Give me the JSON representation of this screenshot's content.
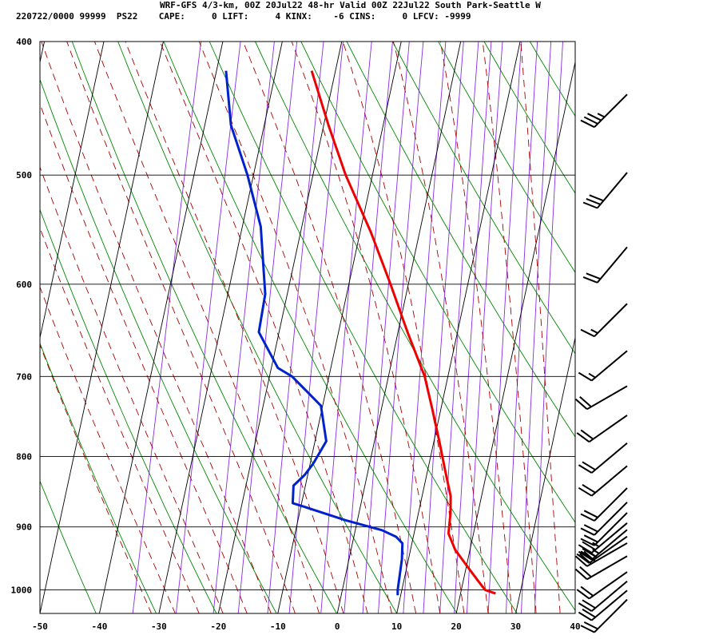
{
  "header": {
    "title": "WRF-GFS 4/3-km, 00Z 20Jul22 48-hr Valid 00Z 22Jul22 South Park-Seattle W",
    "info": "220722/0000 99999  PS22    CAPE:     0 LIFT:     4 KINX:    -6 CINS:     0 LFCV: -9999"
  },
  "chart_data": {
    "type": "line",
    "title": "WRF-GFS 4/3-km, 00Z 20Jul22 48-hr Valid 00Z 22Jul22 South Park-Seattle W",
    "xlabel": "",
    "ylabel": "",
    "x_ticks": [
      "-50",
      "-40",
      "-30",
      "-20",
      "-10",
      "0",
      "10",
      "20",
      "30",
      "40"
    ],
    "y_ticks": [
      "400",
      "500",
      "600",
      "700",
      "800",
      "900",
      "1000"
    ],
    "xlim": [
      -50,
      40
    ],
    "ylim": [
      1040,
      400
    ],
    "skew_deg_per_decade_log_p": 50,
    "grid": true,
    "colors": {
      "temperature": "#ee0000",
      "dewpoint": "#0022cc",
      "isotherm": "#000000",
      "isobar": "#000000",
      "dry_adiabat": "#008800",
      "moist_adiabat": "#aa0000",
      "mixing_ratio": "#8a2be2"
    },
    "series": [
      {
        "key": "temperature",
        "points": [
          {
            "p": 1006,
            "t": 25.9
          },
          {
            "p": 1000,
            "t": 24.0
          },
          {
            "p": 985,
            "t": 22.5
          },
          {
            "p": 960,
            "t": 20.0
          },
          {
            "p": 935,
            "t": 17.5
          },
          {
            "p": 910,
            "t": 15.8
          },
          {
            "p": 880,
            "t": 15.4
          },
          {
            "p": 855,
            "t": 14.8
          },
          {
            "p": 820,
            "t": 13.0
          },
          {
            "p": 780,
            "t": 10.9
          },
          {
            "p": 740,
            "t": 8.6
          },
          {
            "p": 700,
            "t": 6.1
          },
          {
            "p": 650,
            "t": 1.6
          },
          {
            "p": 600,
            "t": -3.0
          },
          {
            "p": 550,
            "t": -8.2
          },
          {
            "p": 500,
            "t": -14.5
          },
          {
            "p": 460,
            "t": -19.2
          },
          {
            "p": 420,
            "t": -24.0
          }
        ]
      },
      {
        "key": "dewpoint",
        "points": [
          {
            "p": 1009,
            "t": 9.5
          },
          {
            "p": 1000,
            "t": 9.3
          },
          {
            "p": 950,
            "t": 8.9
          },
          {
            "p": 925,
            "t": 8.4
          },
          {
            "p": 915,
            "t": 7.1
          },
          {
            "p": 905,
            "t": 4.5
          },
          {
            "p": 890,
            "t": -2.0
          },
          {
            "p": 870,
            "t": -9.5
          },
          {
            "p": 865,
            "t": -11.5
          },
          {
            "p": 840,
            "t": -12.0
          },
          {
            "p": 825,
            "t": -10.5
          },
          {
            "p": 810,
            "t": -9.5
          },
          {
            "p": 780,
            "t": -8.1
          },
          {
            "p": 735,
            "t": -10.3
          },
          {
            "p": 700,
            "t": -16.2
          },
          {
            "p": 690,
            "t": -18.9
          },
          {
            "p": 650,
            "t": -23.4
          },
          {
            "p": 610,
            "t": -23.7
          },
          {
            "p": 545,
            "t": -26.9
          },
          {
            "p": 500,
            "t": -31.0
          },
          {
            "p": 460,
            "t": -35.6
          },
          {
            "p": 420,
            "t": -38.4
          }
        ]
      }
    ],
    "wind_barbs": [
      {
        "p": 1000,
        "dir": 225,
        "kt": 20
      },
      {
        "p": 985,
        "dir": 230,
        "kt": 20
      },
      {
        "p": 970,
        "dir": 230,
        "kt": 20
      },
      {
        "p": 955,
        "dir": 235,
        "kt": 20
      },
      {
        "p": 930,
        "dir": 240,
        "kt": 20
      },
      {
        "p": 910,
        "dir": 240,
        "kt": 30
      },
      {
        "p": 900,
        "dir": 235,
        "kt": 25
      },
      {
        "p": 890,
        "dir": 230,
        "kt": 25
      },
      {
        "p": 880,
        "dir": 230,
        "kt": 25
      },
      {
        "p": 865,
        "dir": 225,
        "kt": 20
      },
      {
        "p": 850,
        "dir": 225,
        "kt": 20
      },
      {
        "p": 830,
        "dir": 225,
        "kt": 20
      },
      {
        "p": 800,
        "dir": 230,
        "kt": 20
      },
      {
        "p": 770,
        "dir": 230,
        "kt": 20
      },
      {
        "p": 735,
        "dir": 235,
        "kt": 20
      },
      {
        "p": 700,
        "dir": 240,
        "kt": 20
      },
      {
        "p": 660,
        "dir": 230,
        "kt": 15
      },
      {
        "p": 610,
        "dir": 225,
        "kt": 15
      },
      {
        "p": 555,
        "dir": 220,
        "kt": 20
      },
      {
        "p": 490,
        "dir": 220,
        "kt": 30
      },
      {
        "p": 430,
        "dir": 225,
        "kt": 35
      }
    ]
  }
}
